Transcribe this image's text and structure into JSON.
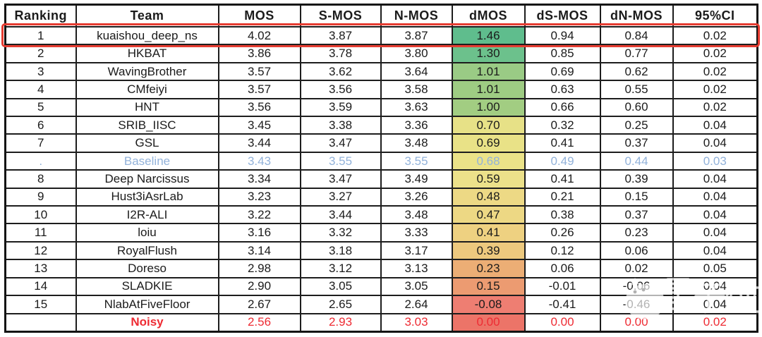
{
  "figure": {
    "kind": "results-leaderboard-table",
    "background": "#ffffff",
    "highlight": {
      "ranking": "1",
      "border_color": "#e63c31"
    },
    "watermark": {
      "text": "量子位",
      "logo": "qbitai-mascot-circle",
      "color": "#ffffff"
    }
  },
  "colors": {
    "grid": "#1d1d1d",
    "text": "#1b1b1b",
    "baseline_row_text": "#92b2da",
    "noisy_row_text": "#ee2b33",
    "highlight_red": "#e63c31"
  },
  "chart_data": {
    "type": "table",
    "columns": [
      "Ranking",
      "Team",
      "MOS",
      "S-MOS",
      "N-MOS",
      "dMOS",
      "dS-MOS",
      "dN-MOS",
      "95%CI"
    ],
    "column_keys": [
      "ranking",
      "team",
      "mos",
      "s-mos",
      "n-mos",
      "dmos",
      "ds-mos",
      "dn-mos",
      "95ci"
    ],
    "dmos_heatmap_scale": {
      "min": -0.08,
      "mid": 0.48,
      "max": 1.46,
      "min_color": "#f8696b",
      "mid_color": "#ffeb84",
      "max_color": "#63be7b"
    },
    "rows": [
      {
        "style": "highlight",
        "dmos_color": "#5fbd8d",
        "cells": [
          "1",
          "kuaishou_deep_ns",
          "4.02",
          "3.87",
          "3.87",
          "1.46",
          "0.94",
          "0.84",
          "0.02"
        ]
      },
      {
        "style": "",
        "dmos_color": "#6cc18c",
        "cells": [
          "2",
          "HKBAT",
          "3.86",
          "3.78",
          "3.80",
          "1.30",
          "0.85",
          "0.77",
          "0.02"
        ]
      },
      {
        "style": "",
        "dmos_color": "#9acb85",
        "cells": [
          "3",
          "WavingBrother",
          "3.57",
          "3.62",
          "3.64",
          "1.01",
          "0.69",
          "0.62",
          "0.02"
        ]
      },
      {
        "style": "",
        "dmos_color": "#9ecc83",
        "cells": [
          "4",
          "CMfeiyi",
          "3.57",
          "3.56",
          "3.58",
          "1.01",
          "0.63",
          "0.55",
          "0.02"
        ]
      },
      {
        "style": "",
        "dmos_color": "#a2cd82",
        "cells": [
          "5",
          "HNT",
          "3.56",
          "3.59",
          "3.63",
          "1.00",
          "0.66",
          "0.60",
          "0.02"
        ]
      },
      {
        "style": "",
        "dmos_color": "#e7e187",
        "cells": [
          "6",
          "SRIB_IISC",
          "3.45",
          "3.38",
          "3.36",
          "0.70",
          "0.32",
          "0.25",
          "0.04"
        ]
      },
      {
        "style": "",
        "dmos_color": "#e9e287",
        "cells": [
          "7",
          "GSL",
          "3.44",
          "3.47",
          "3.48",
          "0.69",
          "0.41",
          "0.37",
          "0.04"
        ]
      },
      {
        "style": "baseline",
        "dmos_color": "#ebe388",
        "cells": [
          ".",
          "Baseline",
          "3.43",
          "3.55",
          "3.55",
          "0.68",
          "0.49",
          "0.44",
          "0.03"
        ]
      },
      {
        "style": "",
        "dmos_color": "#ece18a",
        "cells": [
          "8",
          "Deep Narcissus",
          "3.34",
          "3.47",
          "3.49",
          "0.59",
          "0.41",
          "0.39",
          "0.04"
        ]
      },
      {
        "style": "",
        "dmos_color": "#edd985",
        "cells": [
          "9",
          "Hust3iAsrLab",
          "3.23",
          "3.27",
          "3.26",
          "0.48",
          "0.21",
          "0.15",
          "0.04"
        ]
      },
      {
        "style": "",
        "dmos_color": "#edd884",
        "cells": [
          "10",
          "I2R-ALI",
          "3.22",
          "3.44",
          "3.48",
          "0.47",
          "0.38",
          "0.37",
          "0.04"
        ]
      },
      {
        "style": "",
        "dmos_color": "#eed181",
        "cells": [
          "11",
          "loiu",
          "3.16",
          "3.32",
          "3.33",
          "0.41",
          "0.26",
          "0.23",
          "0.04"
        ]
      },
      {
        "style": "",
        "dmos_color": "#edc97e",
        "cells": [
          "12",
          "RoyalFlush",
          "3.14",
          "3.18",
          "3.17",
          "0.39",
          "0.12",
          "0.06",
          "0.04"
        ]
      },
      {
        "style": "",
        "dmos_color": "#ecae75",
        "cells": [
          "13",
          "Doreso",
          "2.98",
          "3.12",
          "3.13",
          "0.23",
          "0.06",
          "0.02",
          "0.05"
        ]
      },
      {
        "style": "",
        "dmos_color": "#ec9b71",
        "cells": [
          "14",
          "SLADKIE",
          "2.90",
          "3.05",
          "3.05",
          "0.15",
          "-0.01",
          "-0.06",
          "0.04"
        ]
      },
      {
        "style": "",
        "dmos_color": "#ee7e72",
        "cells": [
          "15",
          "NlabAtFiveFloor",
          "2.67",
          "2.65",
          "2.64",
          "-0.08",
          "-0.41",
          "-0.46",
          "0.04"
        ]
      },
      {
        "style": "noisy",
        "dmos_color": "#ec7468",
        "cells": [
          "",
          "Noisy",
          "2.56",
          "2.93",
          "3.03",
          "0.00",
          "0.00",
          "0.00",
          "0.02"
        ]
      }
    ]
  }
}
